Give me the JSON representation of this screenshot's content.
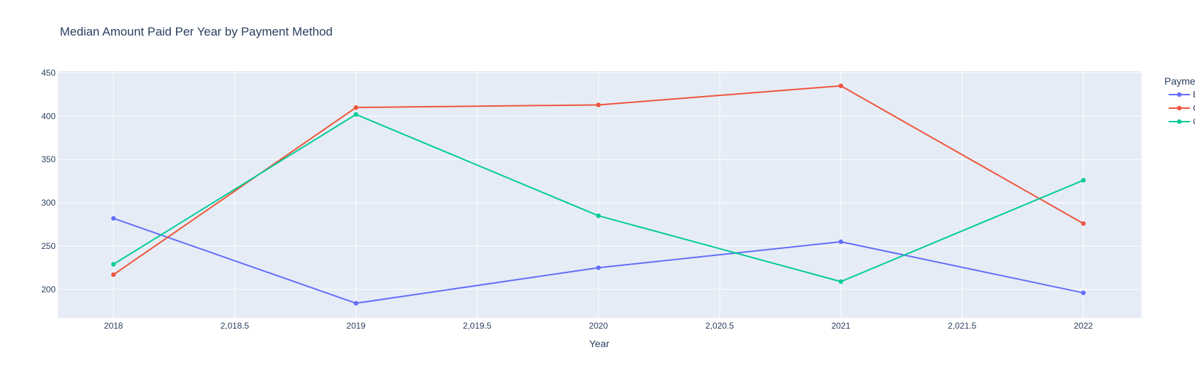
{
  "chart_data": {
    "type": "line",
    "title": "Median Amount Paid Per Year by Payment Method",
    "xlabel": "Year",
    "ylabel": "",
    "x": [
      2018,
      2019,
      2020,
      2021,
      2022
    ],
    "xlim": [
      2017.77,
      2022.24
    ],
    "ylim": [
      167,
      452
    ],
    "x_ticks": [
      {
        "value": 2018,
        "label": "2018"
      },
      {
        "value": 2018.5,
        "label": "2,018.5"
      },
      {
        "value": 2019,
        "label": "2019"
      },
      {
        "value": 2019.5,
        "label": "2,019.5"
      },
      {
        "value": 2020,
        "label": "2020"
      },
      {
        "value": 2020.5,
        "label": "2,020.5"
      },
      {
        "value": 2021,
        "label": "2021"
      },
      {
        "value": 2021.5,
        "label": "2,021.5"
      },
      {
        "value": 2022,
        "label": "2022"
      }
    ],
    "y_ticks": [
      {
        "value": 200,
        "label": "200"
      },
      {
        "value": 250,
        "label": "250"
      },
      {
        "value": 300,
        "label": "300"
      },
      {
        "value": 350,
        "label": "350"
      },
      {
        "value": 400,
        "label": "400"
      },
      {
        "value": 450,
        "label": "450"
      }
    ],
    "grid": true,
    "legend": {
      "title": "Payme",
      "placement": "right"
    },
    "series": [
      {
        "name": "B",
        "color": "#636efa",
        "values": [
          282,
          184,
          225,
          255,
          196
        ]
      },
      {
        "name": "C",
        "color": "#ef553b",
        "values": [
          217,
          410,
          413,
          435,
          276
        ]
      },
      {
        "name": "C",
        "color": "#00cc96",
        "values": [
          229,
          402,
          285,
          209,
          326
        ]
      }
    ]
  }
}
